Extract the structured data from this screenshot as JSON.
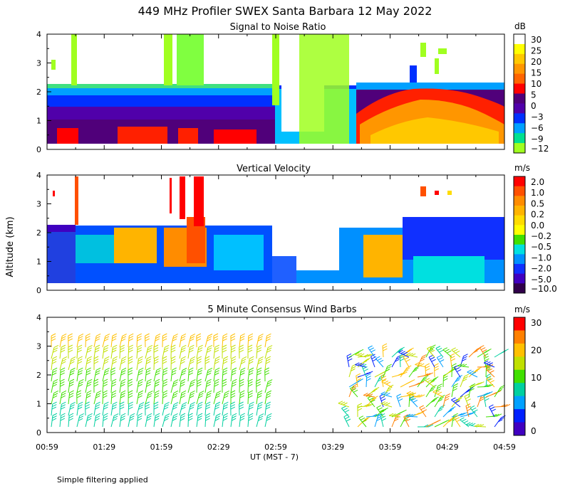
{
  "title": "449 MHz Profiler SWEX Santa Barbara 12 May 2022",
  "ylabel": "Altitude (km)",
  "xlabel": "UT  (MST - 7)",
  "footer": "Simple filtering applied",
  "x_ticks": [
    "00:59",
    "01:29",
    "01:59",
    "02:29",
    "02:59",
    "03:29",
    "03:59",
    "04:29",
    "04:59"
  ],
  "y_ticks": [
    "0",
    "1",
    "2",
    "3",
    "4"
  ],
  "chart_data": [
    {
      "type": "heatmap",
      "title": "Signal to Noise Ratio",
      "colorbar_unit": "dB",
      "colorbar_labels": [
        "30",
        "25",
        "20",
        "15",
        "10",
        "5",
        "0",
        "−3",
        "−6",
        "−9",
        "−12"
      ],
      "colorbar_colors": [
        "#ffffff",
        "#ffff00",
        "#ffc800",
        "#ff9600",
        "#ff6400",
        "#ff0000",
        "#50007a",
        "#5000aa",
        "#0030ff",
        "#00a0ff",
        "#00e090",
        "#a0ff20"
      ],
      "xlim": [
        "00:59",
        "04:59"
      ],
      "ylim": [
        0,
        4
      ]
    },
    {
      "type": "heatmap",
      "title": "Vertical Velocity",
      "colorbar_unit": "m/s",
      "colorbar_labels": [
        "2.0",
        "1.0",
        "0.5",
        "0.2",
        "0.0",
        "−0.2",
        "−0.5",
        "−1.0",
        "−2.0",
        "−5.0",
        "−10.0"
      ],
      "colorbar_colors": [
        "#ff0000",
        "#ff5000",
        "#ff8c00",
        "#ffb400",
        "#ffdc00",
        "#ffff00",
        "#40e000",
        "#00e0e0",
        "#0090ff",
        "#1030ff",
        "#4000c0",
        "#30004a"
      ],
      "xlim": [
        "00:59",
        "04:59"
      ],
      "ylim": [
        0,
        4
      ]
    },
    {
      "type": "scatter",
      "title": "5 Minute Consensus Wind Barbs",
      "colorbar_unit": "m/s",
      "colorbar_labels": [
        "30",
        "20",
        "10",
        "4",
        "0"
      ],
      "colorbar_colors": [
        "#ff0000",
        "#ff8000",
        "#ffc000",
        "#c0e000",
        "#40e000",
        "#00d0a0",
        "#00a0ff",
        "#0020ff",
        "#4000c0"
      ],
      "xlim": [
        "00:59",
        "04:59"
      ],
      "ylim": [
        0,
        4
      ]
    }
  ]
}
